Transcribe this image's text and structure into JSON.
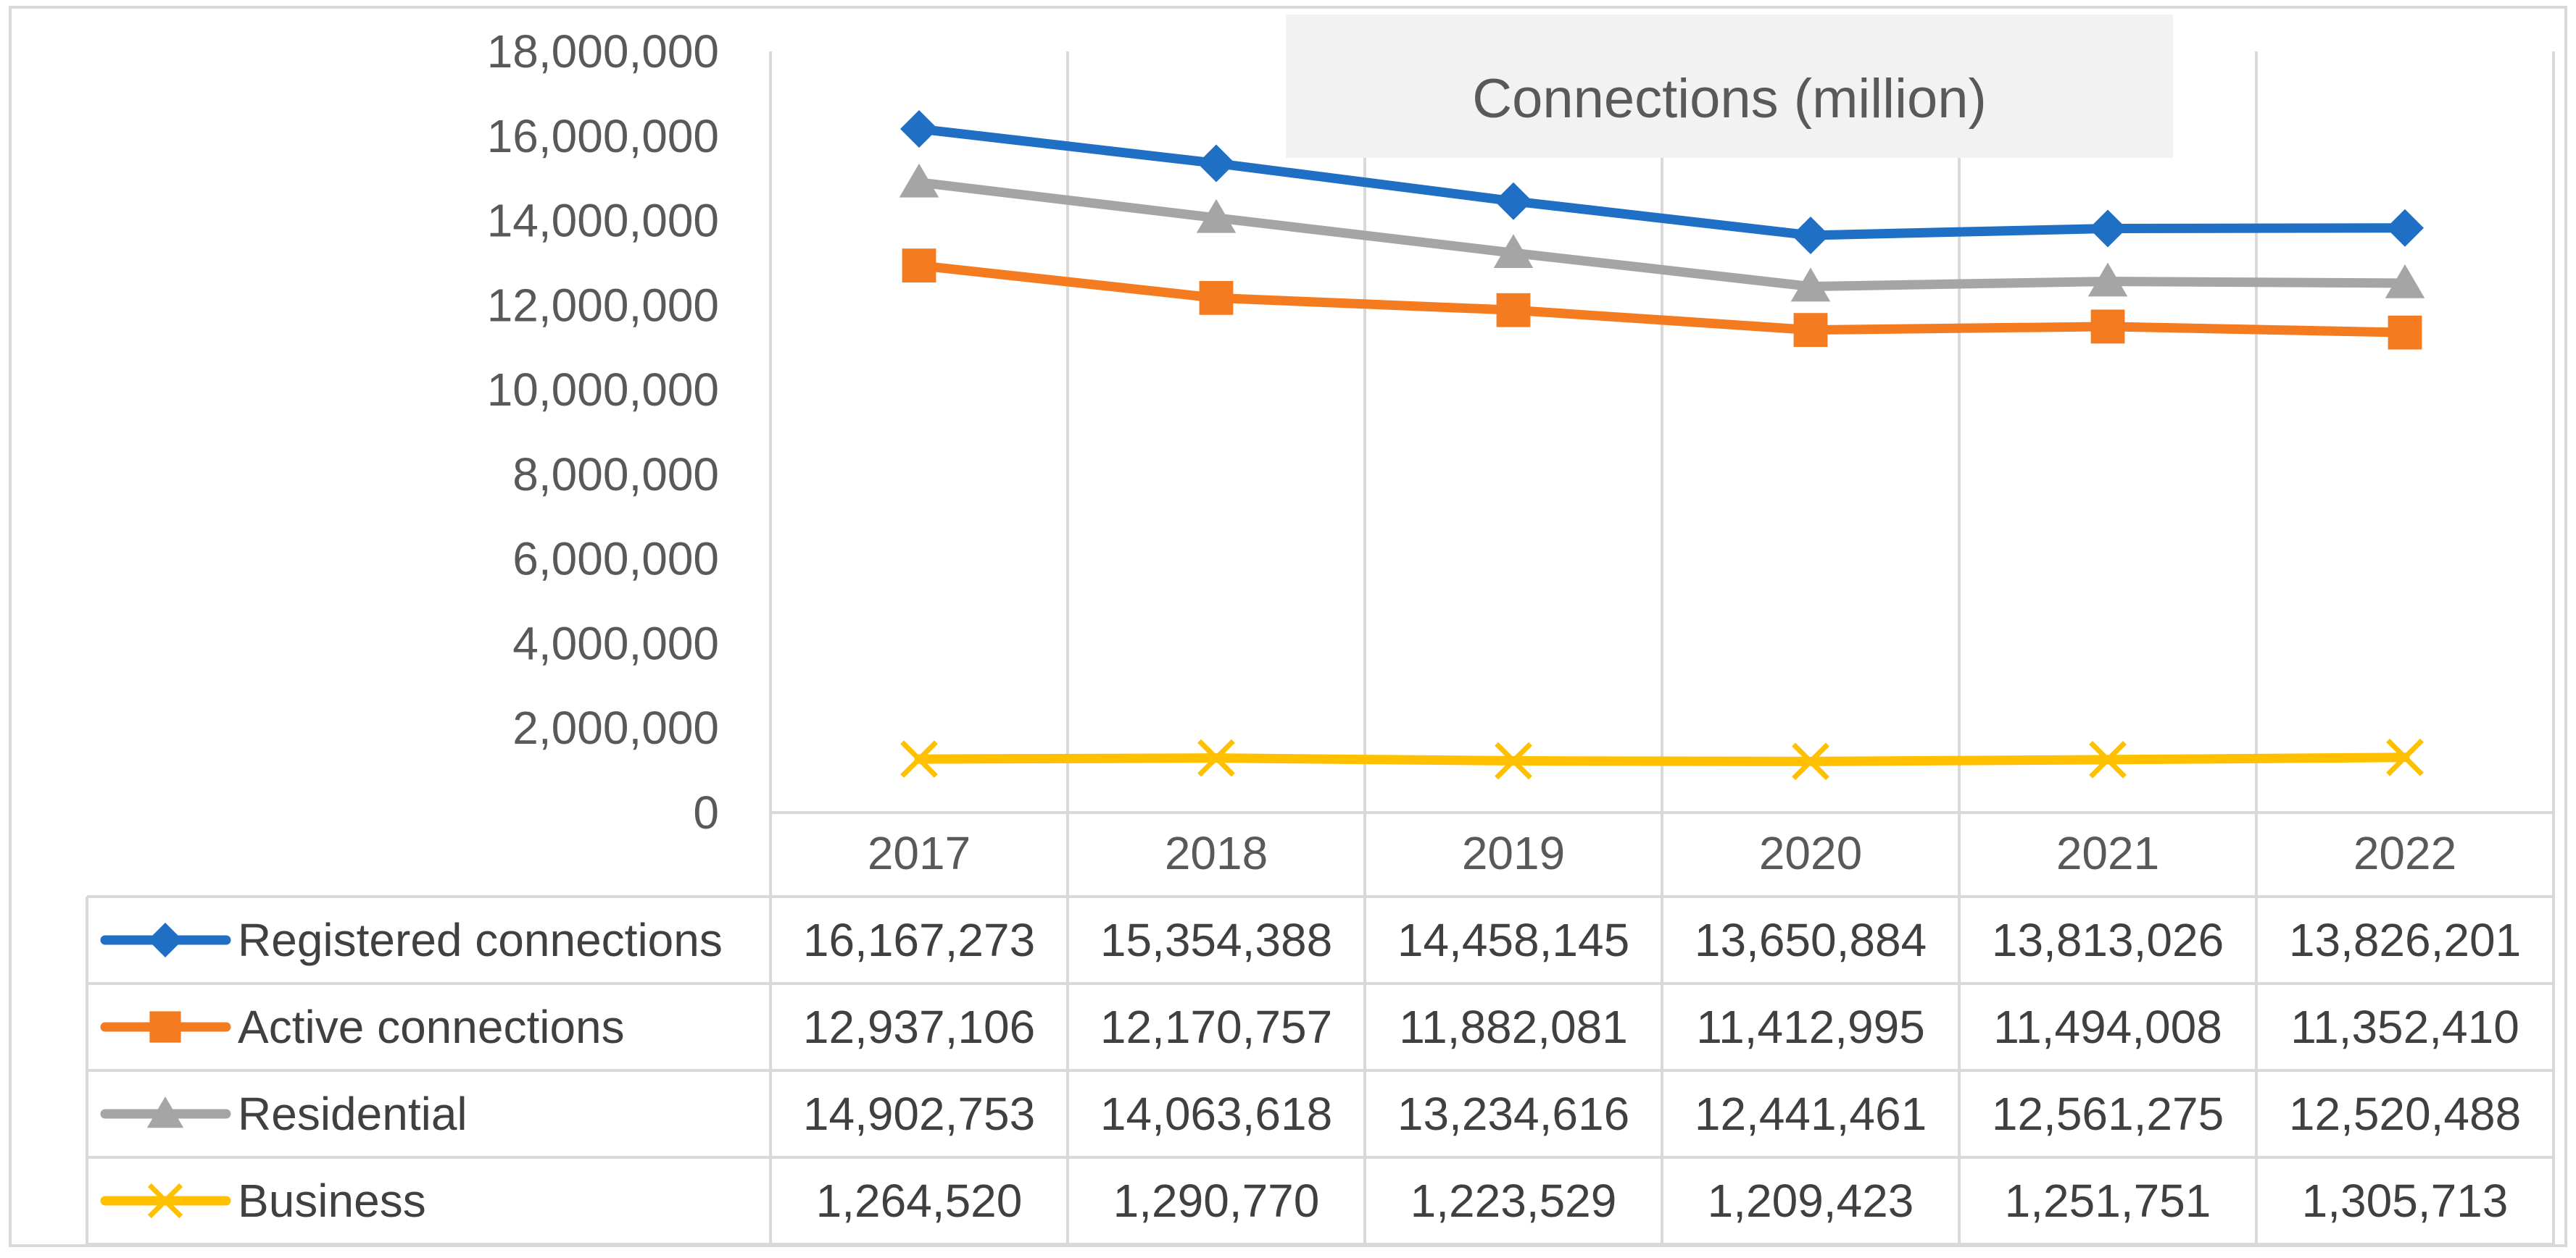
{
  "chart_data": {
    "type": "line",
    "title": "Connections (million)",
    "xlabel": "",
    "ylabel": "",
    "categories": [
      "2017",
      "2018",
      "2019",
      "2020",
      "2021",
      "2022"
    ],
    "ylim": [
      0,
      18000000
    ],
    "yticks": [
      0,
      2000000,
      4000000,
      6000000,
      8000000,
      10000000,
      12000000,
      14000000,
      16000000,
      18000000
    ],
    "ytick_labels": [
      "0",
      "2,000,000",
      "4,000,000",
      "6,000,000",
      "8,000,000",
      "10,000,000",
      "12,000,000",
      "14,000,000",
      "16,000,000",
      "18,000,000"
    ],
    "grid": "vertical",
    "legend": "data-table",
    "series": [
      {
        "name": "Registered connections",
        "color": "#1F6FC5",
        "marker": "diamond",
        "values": [
          16167273,
          15354388,
          14458145,
          13650884,
          13813026,
          13826201
        ],
        "labels": [
          "16,167,273",
          "15,354,388",
          "14,458,145",
          "13,650,884",
          "13,813,026",
          "13,826,201"
        ]
      },
      {
        "name": "Active connections",
        "color": "#F47B20",
        "marker": "square",
        "values": [
          12937106,
          12170757,
          11882081,
          11412995,
          11494008,
          11352410
        ],
        "labels": [
          "12,937,106",
          "12,170,757",
          "11,882,081",
          "11,412,995",
          "11,494,008",
          "11,352,410"
        ]
      },
      {
        "name": "Residential",
        "color": "#A5A5A5",
        "marker": "triangle",
        "values": [
          14902753,
          14063618,
          13234616,
          12441461,
          12561275,
          12520488
        ],
        "labels": [
          "14,902,753",
          "14,063,618",
          "13,234,616",
          "12,441,461",
          "12,561,275",
          "12,520,488"
        ]
      },
      {
        "name": "Business",
        "color": "#FFC000",
        "marker": "x",
        "values": [
          1264520,
          1290770,
          1223529,
          1209423,
          1251751,
          1305713
        ],
        "labels": [
          "1,264,520",
          "1,290,770",
          "1,223,529",
          "1,209,423",
          "1,251,751",
          "1,305,713"
        ]
      }
    ]
  }
}
